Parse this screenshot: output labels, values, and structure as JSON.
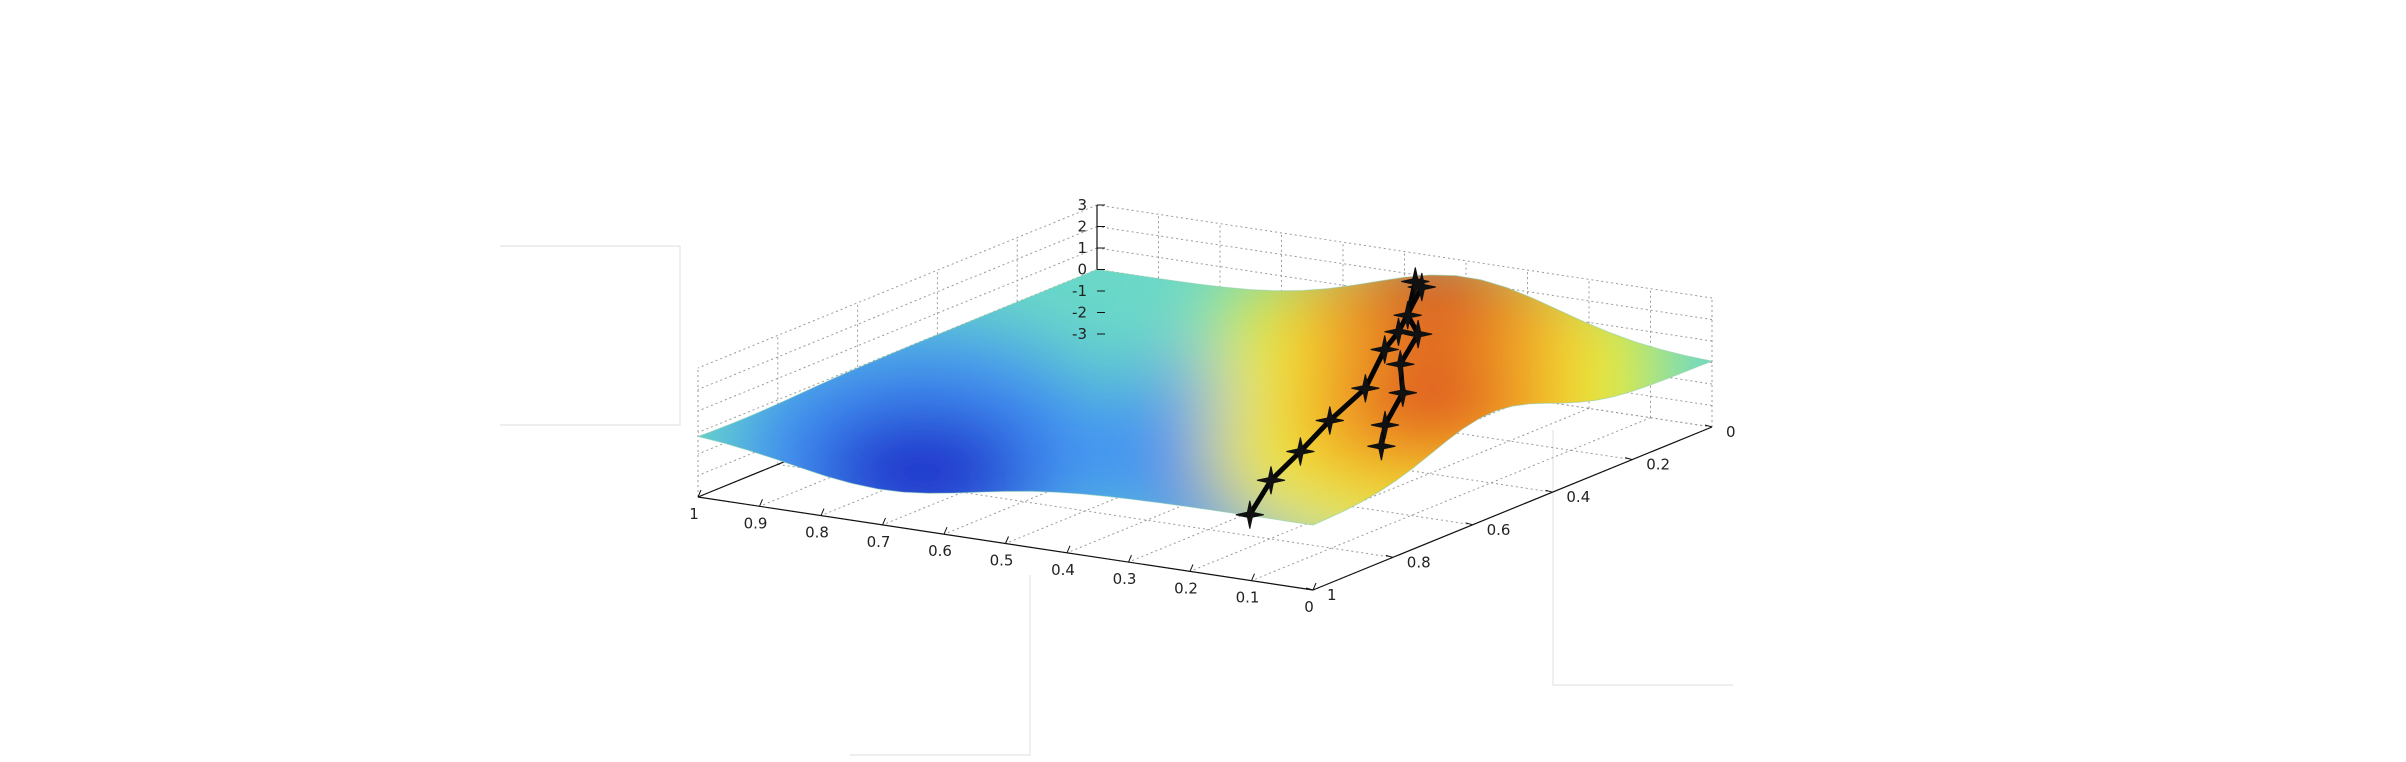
{
  "chart_data": {
    "type": "surface3d",
    "title": "",
    "xlabel": "",
    "ylabel": "",
    "zlabel": "",
    "grid": true,
    "colormap": "jet",
    "xlim": [
      0,
      1
    ],
    "ylim": [
      0,
      1
    ],
    "zlim": [
      -3,
      3
    ],
    "x_ticks": [
      "0",
      "0.1",
      "0.2",
      "0.3",
      "0.4",
      "0.5",
      "0.6",
      "0.7",
      "0.8",
      "0.9",
      "1"
    ],
    "y_ticks": [
      "0",
      "0.2",
      "0.4",
      "0.6",
      "0.8",
      "1"
    ],
    "z_ticks": [
      "-3",
      "-2",
      "-1",
      "0",
      "1",
      "2",
      "3"
    ],
    "surface": {
      "peaks": [
        {
          "x": 0.4,
          "y": 0.08,
          "z": 2.6
        },
        {
          "x": 0.1,
          "y": 0.55,
          "z": 2.7
        }
      ],
      "valleys": [
        {
          "x": 0.32,
          "y": 0.55,
          "z": -2.9
        },
        {
          "x": 0.7,
          "y": 0.9,
          "z": -1.7
        }
      ]
    },
    "series": [
      {
        "points": [
          {
            "x": 0.42,
            "y": 0.08,
            "z": 2.3
          },
          {
            "x": 0.38,
            "y": 0.2,
            "z": 1.3
          },
          {
            "x": 0.37,
            "y": 0.25,
            "z": 0.9
          },
          {
            "x": 0.33,
            "y": 0.36,
            "z": 0.1
          },
          {
            "x": 0.31,
            "y": 0.48,
            "z": -0.4
          },
          {
            "x": 0.28,
            "y": 0.6,
            "z": -0.8
          },
          {
            "x": 0.25,
            "y": 0.72,
            "z": -1.1
          },
          {
            "x": 0.2,
            "y": 0.85,
            "z": -1.5
          }
        ]
      },
      {
        "points": [
          {
            "x": 0.45,
            "y": 0.05,
            "z": 2.2
          },
          {
            "x": 0.43,
            "y": 0.1,
            "z": 1.1
          },
          {
            "x": 0.4,
            "y": 0.12,
            "z": 0.5
          },
          {
            "x": 0.39,
            "y": 0.18,
            "z": -0.4
          },
          {
            "x": 0.36,
            "y": 0.22,
            "z": -1.3
          },
          {
            "x": 0.35,
            "y": 0.28,
            "z": -2.3
          },
          {
            "x": 0.33,
            "y": 0.32,
            "z": -2.9
          }
        ]
      }
    ]
  }
}
